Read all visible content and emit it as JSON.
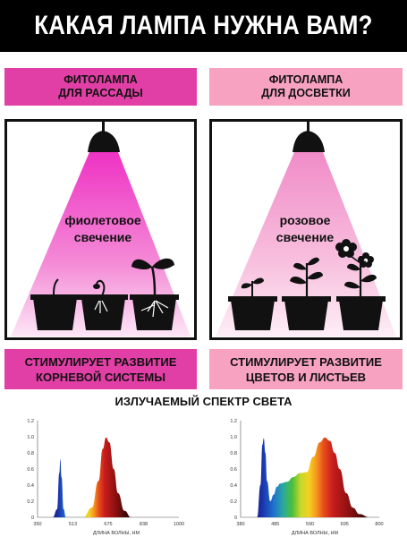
{
  "header": {
    "title": "КАКАЯ ЛАМПА НУЖНА ВАМ?"
  },
  "left": {
    "head_line1": "ФИТОЛАМПА",
    "head_line2": "ДЛЯ РАССАДЫ",
    "glow_line1": "фиолетовое",
    "glow_line2": "свечение",
    "foot_line1": "СТИМУЛИРУЕТ РАЗВИТИЕ",
    "foot_line2": "КОРНЕВОЙ СИСТЕМЫ",
    "head_color": "#e23fa6",
    "light_color": "#ee33c4"
  },
  "right": {
    "head_line1": "ФИТОЛАМПА",
    "head_line2": "ДЛЯ ДОСВЕТКИ",
    "glow_line1": "розовое",
    "glow_line2": "свечение",
    "foot_line1": "СТИМУЛИРУЕТ РАЗВИТИЕ",
    "foot_line2": "ЦВЕТОВ И ЛИСТЬЕВ",
    "head_color": "#f6a2c0",
    "light_color": "#f08cc8"
  },
  "spectrum": {
    "title": "ИЗЛУЧАЕМЫЙ СПЕКТР СВЕТА",
    "xlabel": "ДЛИНА ВОЛНЫ, НМ"
  },
  "chart_data": [
    {
      "type": "area",
      "xlabel": "ДЛИНА ВОЛНЫ, НМ",
      "ylim": [
        0,
        1.2
      ],
      "yticks": [
        "0",
        "0.2",
        "0.4",
        "0.6",
        "0.8",
        "1.0",
        "1.2"
      ],
      "xticks": [
        "350",
        "513",
        "675",
        "838",
        "1000"
      ],
      "xlim": [
        350,
        1000
      ],
      "series": [
        {
          "x": [
            420,
            440,
            450,
            455,
            460,
            470,
            480
          ],
          "y": [
            0,
            0.1,
            0.55,
            0.72,
            0.5,
            0.1,
            0
          ]
        },
        {
          "x": [
            560,
            600,
            630,
            650,
            665,
            680,
            700,
            720,
            750,
            780
          ],
          "y": [
            0,
            0.12,
            0.45,
            0.85,
            0.99,
            0.93,
            0.6,
            0.3,
            0.08,
            0
          ]
        }
      ]
    },
    {
      "type": "area",
      "xlabel": "ДЛИНА ВОЛНЫ, НМ",
      "ylim": [
        0,
        1.2
      ],
      "yticks": [
        "0",
        "0.2",
        "0.4",
        "0.6",
        "0.8",
        "1.0",
        "1.2"
      ],
      "xticks": [
        "380",
        "485",
        "590",
        "695",
        "800"
      ],
      "xlim": [
        380,
        800
      ],
      "series": [
        {
          "x": [
            430,
            440,
            446,
            450,
            455,
            460,
            470,
            480,
            490,
            500,
            520,
            540,
            560,
            580,
            600,
            620,
            635,
            650,
            665,
            680,
            700,
            720,
            740,
            770
          ],
          "y": [
            0,
            0.4,
            0.9,
            0.98,
            0.8,
            0.45,
            0.2,
            0.28,
            0.38,
            0.42,
            0.44,
            0.5,
            0.55,
            0.56,
            0.75,
            0.93,
            0.99,
            0.95,
            0.8,
            0.6,
            0.3,
            0.12,
            0.04,
            0
          ]
        }
      ]
    }
  ]
}
